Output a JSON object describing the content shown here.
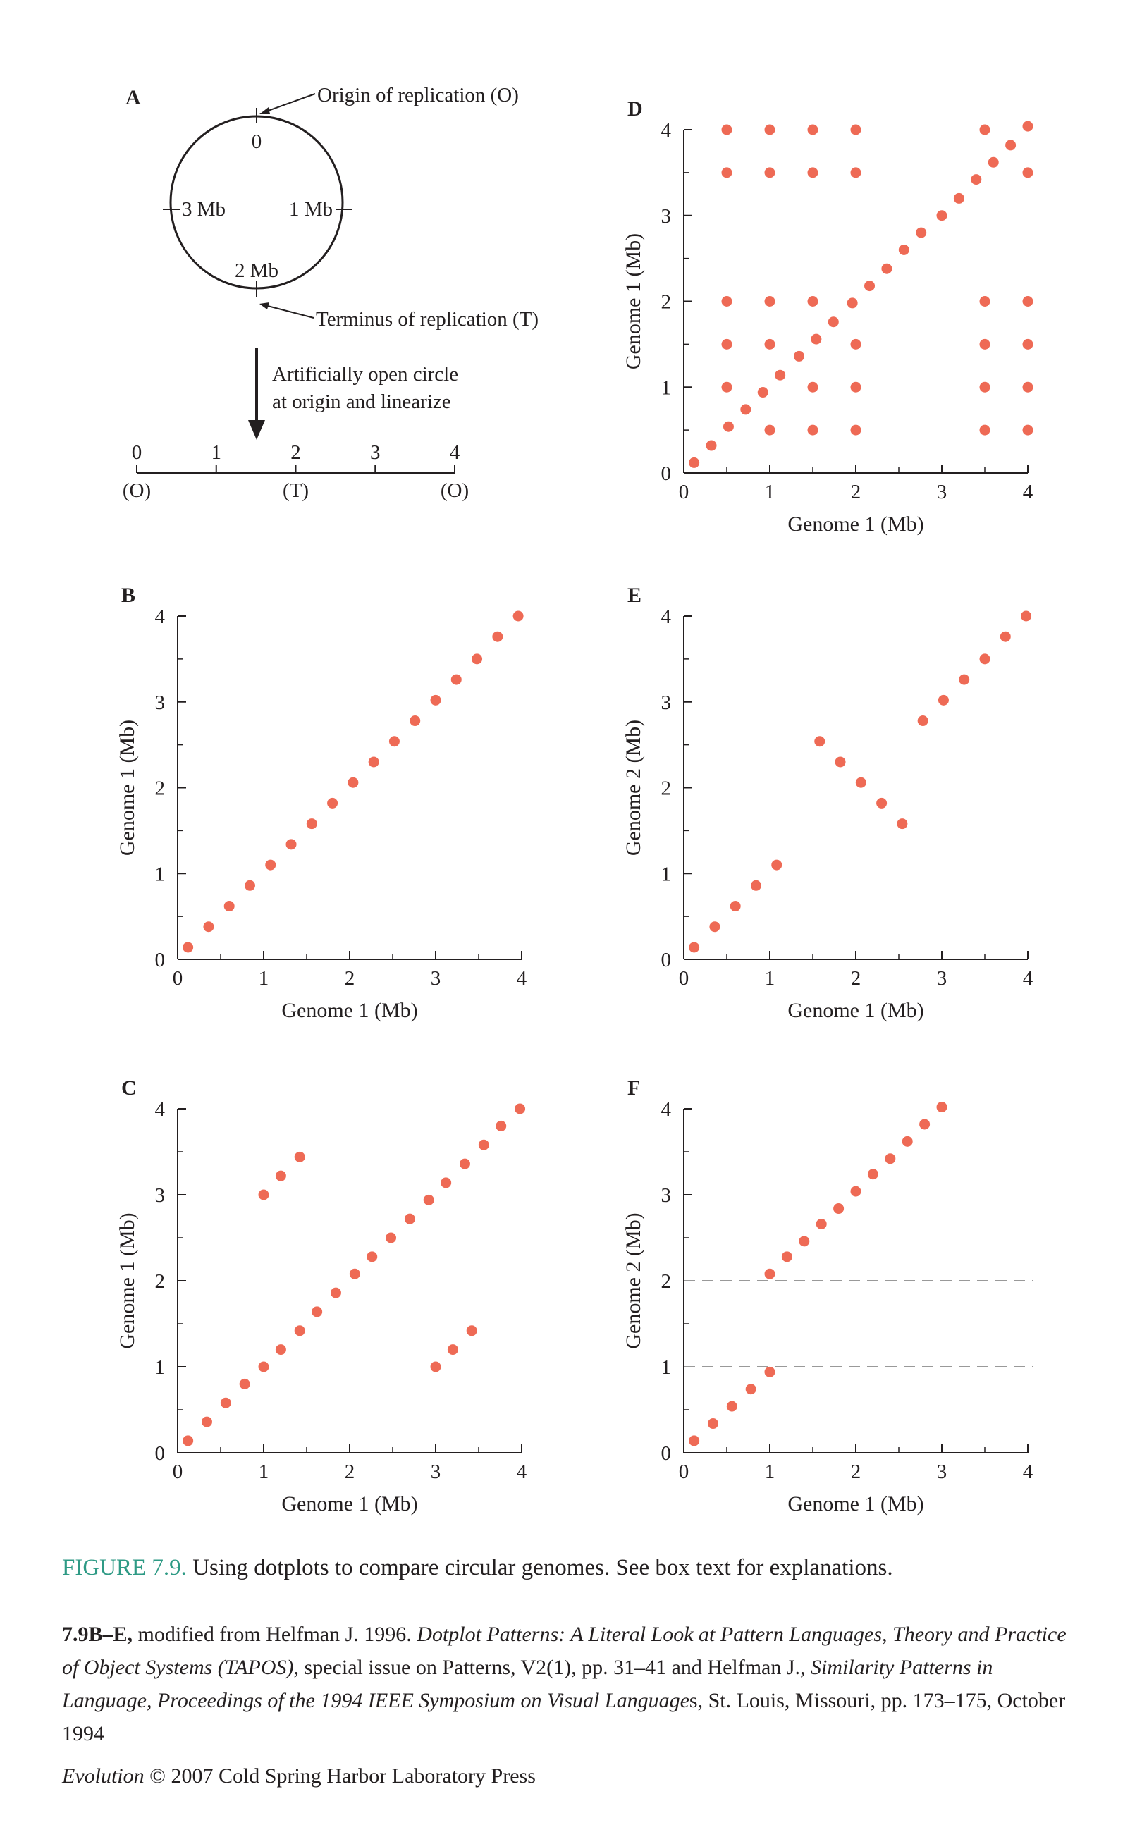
{
  "colors": {
    "dot": "#ee6a55",
    "ink": "#231f20",
    "grid": "#999999",
    "caption_accent": "#2e9a85"
  },
  "panel_a": {
    "label": "A",
    "circle_ticks": {
      "top": "0",
      "right": "1 Mb",
      "bottom": "2 Mb",
      "left": "3 Mb"
    },
    "origin_callout": "Origin of replication (O)",
    "terminus_callout": "Terminus of replication (T)",
    "arrow_text_line1": "Artificially open circle",
    "arrow_text_line2": "at origin and linearize",
    "line_ticks": [
      "0",
      "1",
      "2",
      "3",
      "4"
    ],
    "line_markers": [
      "(O)",
      "(T)",
      "(O)"
    ]
  },
  "chart_data": [
    {
      "id": "B",
      "label": "B",
      "type": "scatter",
      "xlabel": "Genome 1 (Mb)",
      "ylabel": "Genome 1 (Mb)",
      "xlim": [
        0,
        4
      ],
      "ylim": [
        0,
        4
      ],
      "x_ticks": [
        "0",
        "1",
        "2",
        "3",
        "4"
      ],
      "y_ticks": [
        "0",
        "1",
        "2",
        "3",
        "4"
      ],
      "points": [
        [
          0.12,
          0.14
        ],
        [
          0.36,
          0.38
        ],
        [
          0.6,
          0.62
        ],
        [
          0.84,
          0.86
        ],
        [
          1.08,
          1.1
        ],
        [
          1.32,
          1.34
        ],
        [
          1.56,
          1.58
        ],
        [
          1.8,
          1.82
        ],
        [
          2.04,
          2.06
        ],
        [
          2.28,
          2.3
        ],
        [
          2.52,
          2.54
        ],
        [
          2.76,
          2.78
        ],
        [
          3.0,
          3.02
        ],
        [
          3.24,
          3.26
        ],
        [
          3.48,
          3.5
        ],
        [
          3.72,
          3.76
        ],
        [
          3.96,
          4.0
        ]
      ],
      "hlines": []
    },
    {
      "id": "C",
      "label": "C",
      "type": "scatter",
      "xlabel": "Genome 1 (Mb)",
      "ylabel": "Genome 1 (Mb)",
      "xlim": [
        0,
        4
      ],
      "ylim": [
        0,
        4
      ],
      "x_ticks": [
        "0",
        "1",
        "2",
        "3",
        "4"
      ],
      "y_ticks": [
        "0",
        "1",
        "2",
        "3",
        "4"
      ],
      "points": [
        [
          0.12,
          0.14
        ],
        [
          0.34,
          0.36
        ],
        [
          0.56,
          0.58
        ],
        [
          0.78,
          0.8
        ],
        [
          1.0,
          1.0
        ],
        [
          1.2,
          1.2
        ],
        [
          1.42,
          1.42
        ],
        [
          1.62,
          1.64
        ],
        [
          1.84,
          1.86
        ],
        [
          2.06,
          2.08
        ],
        [
          2.26,
          2.28
        ],
        [
          2.48,
          2.5
        ],
        [
          2.7,
          2.72
        ],
        [
          2.92,
          2.94
        ],
        [
          3.12,
          3.14
        ],
        [
          3.34,
          3.36
        ],
        [
          3.56,
          3.58
        ],
        [
          3.76,
          3.8
        ],
        [
          3.98,
          4.0
        ],
        [
          1.0,
          3.0
        ],
        [
          1.2,
          3.22
        ],
        [
          1.42,
          3.44
        ],
        [
          3.0,
          1.0
        ],
        [
          3.2,
          1.2
        ],
        [
          3.42,
          1.42
        ]
      ],
      "hlines": []
    },
    {
      "id": "D",
      "label": "D",
      "type": "scatter",
      "xlabel": "Genome 1 (Mb)",
      "ylabel": "Genome 1 (Mb)",
      "xlim": [
        0,
        4
      ],
      "ylim": [
        0,
        4
      ],
      "x_ticks": [
        "0",
        "1",
        "2",
        "3",
        "4"
      ],
      "y_ticks": [
        "0",
        "1",
        "2",
        "3",
        "4"
      ],
      "points": [
        [
          0.12,
          0.12
        ],
        [
          0.32,
          0.32
        ],
        [
          0.52,
          0.54
        ],
        [
          0.72,
          0.74
        ],
        [
          0.92,
          0.94
        ],
        [
          1.12,
          1.14
        ],
        [
          1.34,
          1.36
        ],
        [
          1.54,
          1.56
        ],
        [
          1.74,
          1.76
        ],
        [
          1.96,
          1.98
        ],
        [
          2.16,
          2.18
        ],
        [
          2.36,
          2.38
        ],
        [
          2.56,
          2.6
        ],
        [
          2.76,
          2.8
        ],
        [
          3.0,
          3.0
        ],
        [
          3.2,
          3.2
        ],
        [
          3.4,
          3.42
        ],
        [
          3.6,
          3.62
        ],
        [
          3.8,
          3.82
        ],
        [
          4.0,
          4.04
        ],
        [
          0.5,
          4.0
        ],
        [
          1.0,
          4.0
        ],
        [
          1.5,
          4.0
        ],
        [
          2.0,
          4.0
        ],
        [
          3.5,
          4.0
        ],
        [
          0.5,
          3.5
        ],
        [
          1.0,
          3.5
        ],
        [
          1.5,
          3.5
        ],
        [
          2.0,
          3.5
        ],
        [
          4.0,
          3.5
        ],
        [
          0.5,
          2.0
        ],
        [
          1.0,
          2.0
        ],
        [
          1.5,
          2.0
        ],
        [
          3.5,
          2.0
        ],
        [
          4.0,
          2.0
        ],
        [
          0.5,
          1.5
        ],
        [
          1.0,
          1.5
        ],
        [
          2.0,
          1.5
        ],
        [
          3.5,
          1.5
        ],
        [
          4.0,
          1.5
        ],
        [
          0.5,
          1.0
        ],
        [
          1.5,
          1.0
        ],
        [
          2.0,
          1.0
        ],
        [
          3.5,
          1.0
        ],
        [
          4.0,
          1.0
        ],
        [
          1.0,
          0.5
        ],
        [
          1.5,
          0.5
        ],
        [
          2.0,
          0.5
        ],
        [
          3.5,
          0.5
        ],
        [
          4.0,
          0.5
        ]
      ],
      "hlines": []
    },
    {
      "id": "E",
      "label": "E",
      "type": "scatter",
      "xlabel": "Genome 1 (Mb)",
      "ylabel": "Genome 2 (Mb)",
      "xlim": [
        0,
        4
      ],
      "ylim": [
        0,
        4
      ],
      "x_ticks": [
        "0",
        "1",
        "2",
        "3",
        "4"
      ],
      "y_ticks": [
        "0",
        "1",
        "2",
        "3",
        "4"
      ],
      "points": [
        [
          0.12,
          0.14
        ],
        [
          0.36,
          0.38
        ],
        [
          0.6,
          0.62
        ],
        [
          0.84,
          0.86
        ],
        [
          1.08,
          1.1
        ],
        [
          1.58,
          2.54
        ],
        [
          1.82,
          2.3
        ],
        [
          2.06,
          2.06
        ],
        [
          2.3,
          1.82
        ],
        [
          2.54,
          1.58
        ],
        [
          2.78,
          2.78
        ],
        [
          3.02,
          3.02
        ],
        [
          3.26,
          3.26
        ],
        [
          3.5,
          3.5
        ],
        [
          3.74,
          3.76
        ],
        [
          3.98,
          4.0
        ]
      ],
      "hlines": []
    },
    {
      "id": "F",
      "label": "F",
      "type": "scatter",
      "xlabel": "Genome 1 (Mb)",
      "ylabel": "Genome 2 (Mb)",
      "xlim": [
        0,
        4
      ],
      "ylim": [
        0,
        4
      ],
      "x_ticks": [
        "0",
        "1",
        "2",
        "3",
        "4"
      ],
      "y_ticks": [
        "0",
        "1",
        "2",
        "3",
        "4"
      ],
      "points": [
        [
          0.12,
          0.14
        ],
        [
          0.34,
          0.34
        ],
        [
          0.56,
          0.54
        ],
        [
          0.78,
          0.74
        ],
        [
          1.0,
          0.94
        ],
        [
          1.0,
          2.08
        ],
        [
          1.2,
          2.28
        ],
        [
          1.4,
          2.46
        ],
        [
          1.6,
          2.66
        ],
        [
          1.8,
          2.84
        ],
        [
          2.0,
          3.04
        ],
        [
          2.2,
          3.24
        ],
        [
          2.4,
          3.42
        ],
        [
          2.6,
          3.62
        ],
        [
          2.8,
          3.82
        ],
        [
          3.0,
          4.02
        ]
      ],
      "hlines": [
        1,
        2
      ]
    }
  ],
  "caption": {
    "figure_label": "FIGURE 7.9.",
    "figure_text": " Using dotplots to compare circular genomes. See box text for explanations.",
    "credit_bold": "7.9B–E,",
    "credit_1": " modified from Helfman J. 1996. ",
    "credit_italic_1": "Dotplot Patterns: A Literal Look at Pattern Languages, Theory and Practice of Object Systems (TAPOS)",
    "credit_2": ", special issue on Patterns, V2(1), pp. 31–41 and Helfman J., ",
    "credit_italic_2": "Similarity Patterns in Language, Proceedings of the 1994 IEEE Symposium on Visual Language",
    "credit_3": "s, St. Louis, Missouri, pp. 173–175, October 1994",
    "copyright_italic": "Evolution",
    "copyright_text": " © 2007 Cold Spring Harbor Laboratory Press"
  }
}
